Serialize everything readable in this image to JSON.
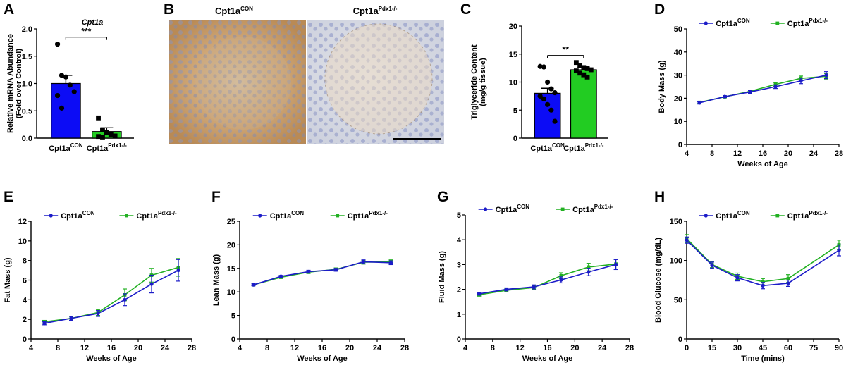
{
  "colors": {
    "con": "#1c1cc8",
    "pdx": "#22b022",
    "conBar": "#0c0cf5",
    "pdxBar": "#22cc22"
  },
  "micrographs": {
    "con_title": "Cpt1a",
    "con_sup": "CON",
    "pdx_title": "Cpt1a",
    "pdx_sup": "Pdx1-/-"
  },
  "chart_data": [
    {
      "panel": "A",
      "type": "bar",
      "title": "Cpt1a",
      "ylabel_line1": "Relative mRNA Abundance",
      "ylabel_line2": "(Fold over Control)",
      "ylim": [
        0,
        2.0
      ],
      "yticks": [
        "0.0",
        "0.5",
        "1.0",
        "1.5",
        "2.0"
      ],
      "categories": [
        {
          "main": "Cpt1a",
          "sup": "CON"
        },
        {
          "main": "Cpt1a",
          "sup": "Pdx1-/-"
        }
      ],
      "values": [
        1.0,
        0.12
      ],
      "errors": [
        0.15,
        0.07
      ],
      "points": [
        [
          1.72,
          1.15,
          1.12,
          0.97,
          0.85,
          0.78,
          0.55
        ],
        [
          0.37,
          0.15,
          0.1,
          0.07,
          0.04,
          0.03,
          0.02
        ]
      ],
      "significance": "***"
    },
    {
      "panel": "C",
      "type": "bar",
      "ylabel_line1": "Triglyceride Content",
      "ylabel_line2": "(mg/g tissue)",
      "ylim": [
        0,
        20
      ],
      "yticks": [
        "0",
        "5",
        "10",
        "15",
        "20"
      ],
      "categories": [
        {
          "main": "Cpt1a",
          "sup": "CON"
        },
        {
          "main": "Cpt1a",
          "sup": "Pdx1-/-"
        }
      ],
      "values": [
        8.0,
        12.2
      ],
      "errors": [
        0.9,
        0.35
      ],
      "points": [
        [
          12.8,
          12.7,
          10.0,
          8.8,
          8.1,
          7.5,
          7.0,
          6.0,
          5.0,
          3.0
        ],
        [
          13.5,
          12.9,
          12.6,
          12.4,
          12.2,
          12.0,
          11.6,
          11.3,
          10.9
        ]
      ],
      "significance": "**"
    },
    {
      "panel": "D",
      "type": "line",
      "ylabel": "Body Mass (g)",
      "xlabel": "Weeks of  Age",
      "xlim": [
        4,
        28
      ],
      "ylim": [
        0,
        50
      ],
      "xticks": [
        "4",
        "8",
        "12",
        "16",
        "20",
        "24",
        "28"
      ],
      "yticks": [
        "0",
        "10",
        "20",
        "30",
        "40",
        "50"
      ],
      "x": [
        6,
        10,
        14,
        18,
        22,
        26
      ],
      "series": [
        {
          "name": "Cpt1a",
          "sup": "CON",
          "values": [
            18.0,
            20.7,
            22.7,
            25.0,
            27.5,
            30.0
          ],
          "err": [
            0.5,
            0.4,
            0.6,
            0.8,
            1.2,
            1.5
          ]
        },
        {
          "name": "Cpt1a",
          "sup": "Pdx1-/-",
          "values": [
            18.2,
            20.6,
            23.0,
            26.0,
            28.6,
            29.5
          ],
          "err": [
            0.5,
            0.4,
            0.6,
            0.8,
            1.0,
            1.2
          ]
        }
      ]
    },
    {
      "panel": "E",
      "type": "line",
      "ylabel": "Fat Mass (g)",
      "xlabel": "Weeks of  Age",
      "xlim": [
        4,
        28
      ],
      "ylim": [
        0,
        12
      ],
      "xticks": [
        "4",
        "8",
        "12",
        "16",
        "20",
        "24",
        "28"
      ],
      "yticks": [
        "0",
        "2",
        "4",
        "6",
        "8",
        "10",
        "12"
      ],
      "x": [
        6,
        10,
        14,
        18,
        22,
        26
      ],
      "series": [
        {
          "name": "Cpt1a",
          "sup": "CON",
          "values": [
            1.6,
            2.1,
            2.6,
            4.0,
            5.6,
            7.0
          ],
          "err": [
            0.15,
            0.2,
            0.3,
            0.6,
            0.9,
            1.1
          ]
        },
        {
          "name": "Cpt1a",
          "sup": "Pdx1-/-",
          "values": [
            1.75,
            2.1,
            2.7,
            4.5,
            6.5,
            7.3
          ],
          "err": [
            0.15,
            0.2,
            0.3,
            0.6,
            0.7,
            0.9
          ]
        }
      ]
    },
    {
      "panel": "F",
      "type": "line",
      "ylabel": "Lean Mass (g)",
      "xlabel": "Weeks of  Age",
      "xlim": [
        4,
        28
      ],
      "ylim": [
        0,
        25
      ],
      "xticks": [
        "4",
        "8",
        "12",
        "16",
        "20",
        "24",
        "28"
      ],
      "yticks": [
        "0",
        "5",
        "10",
        "15",
        "20",
        "25"
      ],
      "x": [
        6,
        10,
        14,
        18,
        22,
        26
      ],
      "series": [
        {
          "name": "Cpt1a",
          "sup": "CON",
          "values": [
            11.5,
            13.3,
            14.3,
            14.7,
            16.4,
            16.2
          ],
          "err": [
            0.2,
            0.2,
            0.3,
            0.3,
            0.4,
            0.4
          ]
        },
        {
          "name": "Cpt1a",
          "sup": "Pdx1-/-",
          "values": [
            11.5,
            13.1,
            14.2,
            14.8,
            16.3,
            16.4
          ],
          "err": [
            0.2,
            0.2,
            0.3,
            0.3,
            0.4,
            0.4
          ]
        }
      ]
    },
    {
      "panel": "G",
      "type": "line",
      "ylabel": "Fluid Mass (g)",
      "xlabel": "Weeks of  Age",
      "xlim": [
        4,
        28
      ],
      "ylim": [
        0,
        5
      ],
      "xticks": [
        "4",
        "8",
        "12",
        "16",
        "20",
        "24",
        "28"
      ],
      "yticks": [
        "0",
        "1",
        "2",
        "3",
        "4",
        "5"
      ],
      "x": [
        6,
        10,
        14,
        18,
        22,
        26
      ],
      "series": [
        {
          "name": "Cpt1a",
          "sup": "CON",
          "values": [
            1.82,
            2.0,
            2.1,
            2.38,
            2.7,
            3.0
          ],
          "err": [
            0.05,
            0.06,
            0.08,
            0.12,
            0.15,
            0.2
          ]
        },
        {
          "name": "Cpt1a",
          "sup": "Pdx1-/-",
          "values": [
            1.78,
            1.96,
            2.07,
            2.55,
            2.9,
            3.02
          ],
          "err": [
            0.05,
            0.06,
            0.08,
            0.12,
            0.15,
            0.2
          ]
        }
      ]
    },
    {
      "panel": "H",
      "type": "line",
      "ylabel": "Blood Glucose (mg/dL)",
      "xlabel": "Time (mins)",
      "xlim": [
        0,
        90
      ],
      "ylim": [
        0,
        150
      ],
      "xticks": [
        "0",
        "15",
        "30",
        "45",
        "60",
        "75",
        "90"
      ],
      "yticks": [
        "0",
        "50",
        "100",
        "150"
      ],
      "x": [
        0,
        15,
        30,
        45,
        60,
        90
      ],
      "series": [
        {
          "name": "Cpt1a",
          "sup": "CON",
          "values": [
            126,
            94,
            78,
            68,
            71,
            113
          ],
          "err": [
            4,
            4,
            4,
            4,
            4,
            7
          ]
        },
        {
          "name": "Cpt1a",
          "sup": "Pdx1-/-",
          "values": [
            128,
            95,
            80,
            73,
            77,
            120
          ],
          "err": [
            5,
            4,
            4,
            4,
            5,
            6
          ]
        }
      ]
    }
  ]
}
